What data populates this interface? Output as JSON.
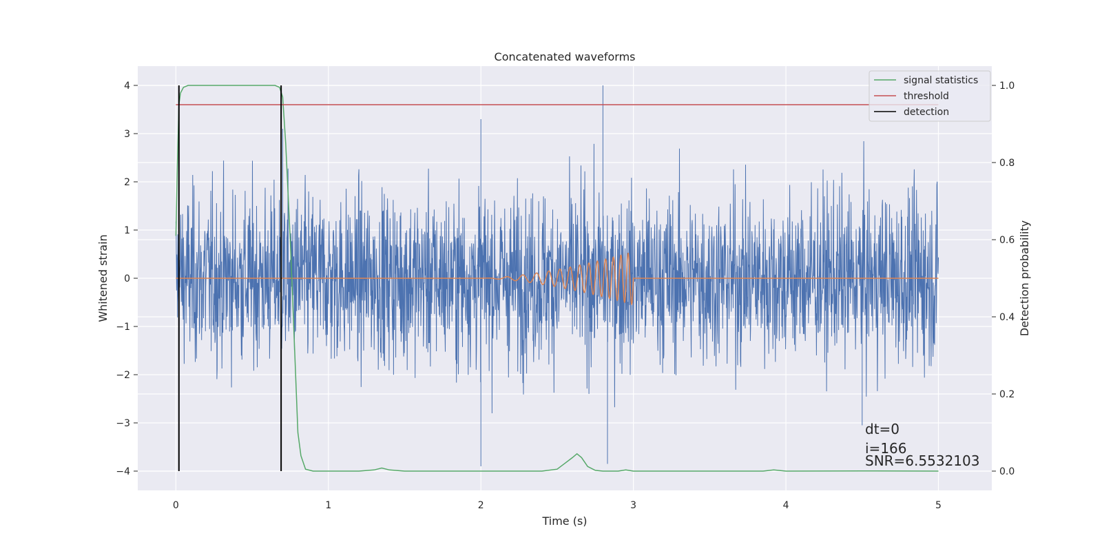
{
  "chart_data": {
    "type": "line",
    "title": "Concatenated waveforms",
    "xlabel": "Time (s)",
    "ylabel": "Whitened strain",
    "y2label": "Detection probability",
    "xlim": [
      -0.25,
      5.35
    ],
    "ylim": [
      -4.4,
      4.4
    ],
    "y2lim": [
      -0.05,
      1.05
    ],
    "xticks": [
      0,
      1,
      2,
      3,
      4,
      5
    ],
    "yticks": [
      -4,
      -3,
      -2,
      -1,
      0,
      1,
      2,
      3,
      4
    ],
    "y2ticks": [
      0.0,
      0.2,
      0.4,
      0.6,
      0.8,
      1.0
    ],
    "xtick_labels": [
      "0",
      "1",
      "2",
      "3",
      "4",
      "5"
    ],
    "ytick_labels": [
      "−4",
      "−3",
      "−2",
      "−1",
      "0",
      "1",
      "2",
      "3",
      "4"
    ],
    "y2tick_labels": [
      "0.0",
      "0.2",
      "0.4",
      "0.6",
      "0.8",
      "1.0"
    ],
    "grid": true,
    "legend_position": "top-right",
    "legend": [
      {
        "label": "signal statistics",
        "color": "#55a868"
      },
      {
        "label": "threshold",
        "color": "#c44e52"
      },
      {
        "label": "detection",
        "color": "#000000"
      }
    ],
    "series": [
      {
        "kind": "noise",
        "axis": "left",
        "color": "#4c72b0",
        "x_range": [
          0,
          5
        ],
        "typical_amplitude": 1.0,
        "extremes": [
          {
            "x": 2.8,
            "y": 4.0
          },
          {
            "x": 2.0,
            "y": 3.3
          },
          {
            "x": 0.7,
            "y": 3.1
          },
          {
            "x": 2.0,
            "y": -3.9
          },
          {
            "x": 2.83,
            "y": -3.85
          },
          {
            "x": 4.5,
            "y": -3.05
          }
        ]
      },
      {
        "kind": "chirp",
        "axis": "left",
        "color": "#dd8452",
        "x_range": [
          0,
          5
        ],
        "chirp_range": [
          2.0,
          3.0
        ],
        "max_amplitude": 0.55
      },
      {
        "name": "signal statistics",
        "axis": "right",
        "color": "#55a868",
        "x": [
          0,
          0.01,
          0.02,
          0.03,
          0.05,
          0.08,
          0.15,
          0.3,
          0.5,
          0.65,
          0.68,
          0.7,
          0.72,
          0.75,
          0.78,
          0.8,
          0.82,
          0.85,
          0.9,
          1.0,
          1.2,
          1.3,
          1.35,
          1.4,
          1.5,
          2.0,
          2.4,
          2.5,
          2.55,
          2.6,
          2.63,
          2.66,
          2.7,
          2.75,
          2.8,
          2.9,
          2.95,
          3.0,
          3.5,
          3.85,
          3.92,
          4.0,
          4.5,
          5.0
        ],
        "y": [
          0.61,
          0.8,
          0.95,
          0.98,
          0.995,
          1.0,
          1.0,
          1.0,
          1.0,
          1.0,
          0.995,
          0.97,
          0.85,
          0.6,
          0.3,
          0.1,
          0.04,
          0.005,
          0.0,
          0.0,
          0.0,
          0.003,
          0.008,
          0.003,
          0.0,
          0.0,
          0.0,
          0.005,
          0.02,
          0.035,
          0.045,
          0.035,
          0.012,
          0.002,
          0.0,
          0.0,
          0.003,
          0.0,
          0.0,
          0.0,
          0.003,
          0.0,
          0.0005,
          0.0
        ]
      },
      {
        "name": "threshold",
        "axis": "right",
        "color": "#c44e52",
        "x": [
          0,
          5
        ],
        "y": [
          0.95,
          0.95
        ]
      },
      {
        "name": "detection",
        "axis": "right",
        "color": "#000000",
        "x": [
          0.02,
          0.69
        ],
        "y_span": [
          0.0,
          1.0
        ]
      }
    ],
    "annotations": [
      "dt=0",
      "i=166",
      "SNR=6.5532103"
    ]
  }
}
